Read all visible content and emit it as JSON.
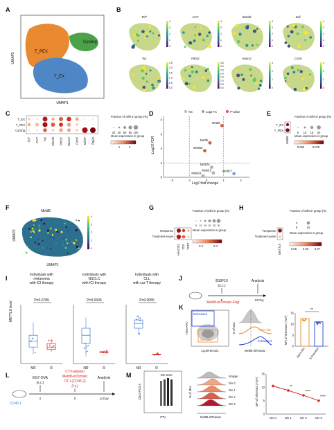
{
  "panels": {
    "A": {
      "letter": "A",
      "ylabel": "UMAP2",
      "xlabel": "UMAP1",
      "clusters": [
        "T_PEX",
        "T_EX",
        "Cycling"
      ],
      "colors": {
        "pex": "#e98a30",
        "ex": "#4f86c6",
        "cyc": "#4ba24a"
      }
    },
    "B": {
      "letter": "B",
      "genes": [
        "Tcf7",
        "Ccr7",
        "Slamf6",
        "Sell",
        "Tox",
        "Pdcd1",
        "Havcr2",
        "Cxcr6"
      ],
      "scales": [
        [
          "4",
          "3",
          "2",
          "1",
          "0"
        ],
        [
          "4",
          "3",
          "2",
          "1",
          "0"
        ],
        [
          "4",
          "3",
          "2",
          "1",
          "0"
        ],
        [
          "4",
          "3",
          "2",
          "1",
          "0"
        ],
        [
          "2.5",
          "2.0",
          "1.5",
          "1.0",
          "0.5",
          "0.0"
        ],
        [
          "3.5",
          "3.0",
          "2.5",
          "2.0",
          "1.5",
          "1.0",
          "0.5",
          "0.0"
        ],
        [
          "3",
          "2",
          "1",
          "0"
        ],
        [
          "3",
          "2",
          "1",
          "0"
        ]
      ]
    },
    "C": {
      "letter": "C",
      "rows": [
        "T_EX",
        "T_PEX",
        "Cycling"
      ],
      "cols": [
        "Tcf7",
        "Ccr7",
        "Tox",
        "Slamf6",
        "Pdcd1",
        "Havcr2",
        "Cxcr6",
        "Mki67",
        "Top2a"
      ],
      "size_title": "Fraction of cells in group (%)",
      "size_ticks": [
        "20",
        "40",
        "60",
        "80",
        "100"
      ],
      "color_title": "Mean expression in group",
      "color_ticks": [
        "1",
        "2"
      ]
    },
    "D": {
      "letter": "D",
      "legend": [
        "NS",
        "Log2 FC",
        "P-value"
      ],
      "ylabel": "-Log10 FDR",
      "xlabel": "Log2 fold change",
      "xticks": [
        "-2",
        "-1",
        "0",
        "1",
        "2"
      ],
      "yticks": [
        "0",
        "2",
        "4",
        "6",
        "8"
      ],
      "points": [
        {
          "label": "Mettl8",
          "x": 0.9,
          "y": 7.2,
          "c": "red"
        },
        {
          "label": "Mettl6",
          "x": 0.2,
          "y": 4.8,
          "c": "red"
        },
        {
          "label": "Mettl16",
          "x": -0.1,
          "y": 3.7,
          "c": "red"
        },
        {
          "label": "Mettl26",
          "x": 0.3,
          "y": 1.4,
          "c": "grey"
        },
        {
          "label": "Mettl15",
          "x": 0.4,
          "y": 0.6,
          "c": "grey"
        },
        {
          "label": "Mettl24",
          "x": -0.2,
          "y": 0.2,
          "c": "grey"
        },
        {
          "label": "Mettl27",
          "x": 1.6,
          "y": 0.5,
          "c": "blue"
        }
      ]
    },
    "E": {
      "letter": "E",
      "rows": [
        "T_EX",
        "T_PEX"
      ],
      "col": "Mettl8",
      "size_title": "Fraction of cells in group (%)",
      "size_ticks": [
        "5",
        "10",
        "15",
        "20"
      ],
      "color_title": "Mean expression in group",
      "color_ticks": [
        "0.050",
        "0.075"
      ]
    },
    "F": {
      "letter": "F",
      "title": "Mettl8",
      "ylabel": "UMAP2",
      "xlabel": "UMAP1",
      "scale": [
        "4",
        "3",
        "2",
        "1",
        "0"
      ]
    },
    "G": {
      "letter": "G",
      "rows": [
        "Response",
        "Treatment-naive"
      ],
      "cols": [
        "HAVCR2",
        "TOX",
        "TCF7"
      ],
      "size_title": "Fraction of cells in group (%)",
      "size_ticks": [
        "5",
        "10",
        "15",
        "20",
        "25",
        "30"
      ],
      "color_title": "Mean expression in group",
      "color_ticks": [
        "0.2",
        "0.4"
      ]
    },
    "H": {
      "letter": "H",
      "rows": [
        "Response",
        "Treatment-naive"
      ],
      "col": "METTL8",
      "size_title": "Fraction of cells in group (%)",
      "size_ticks": [
        "5",
        "10"
      ],
      "color_title": "Mean expression in group",
      "color_ticks": [
        "0.05",
        "0.06",
        "0.07"
      ]
    },
    "I": {
      "letter": "I",
      "ylabel": "METTL8 level",
      "groups": [
        "NR",
        "R"
      ],
      "plots": [
        {
          "title": "Individuals with melanoma with ICI therapy",
          "p": "P=0.0789"
        },
        {
          "title": "Individuals with NSCLC with ICI therapy",
          "p": "P=0.0335"
        },
        {
          "title": "Individuals with CLL with car-T therapy",
          "p": "P=0.0055"
        }
      ]
    },
    "J": {
      "letter": "J",
      "tumor": "B16F10",
      "route": "(s.c.)",
      "mouse": "Mettl8-tdTomato-Flag",
      "day0": "0",
      "day13": "13 Day",
      "analysis": "Analysis"
    },
    "K": {
      "letter": "K",
      "gate_y": "Tim3-APC",
      "gate_x": "Ly108-BV421",
      "gates": [
        "Exhausted",
        "Stem-like"
      ],
      "hist_y": "% of Max",
      "hist_x": "Mettl8-tdTomato",
      "hist_labels": [
        "Stem-like",
        "Exhausted"
      ],
      "bar_y": "MFI of tdTomato (×10³)",
      "bar_x": [
        "Stem-like",
        "Exhausted"
      ],
      "sig": "**",
      "values": [
        12.5,
        11.0
      ],
      "yticks": [
        "0",
        "5",
        "10",
        "15"
      ]
    },
    "L": {
      "letter": "L",
      "tumor": "EG7-OVA",
      "route": "(s.c.)",
      "cells": [
        "CTV-labeled",
        "Mettl8-tdTomato",
        "OT-I (CD45.2)",
        "(i.v.)"
      ],
      "days": [
        "0",
        "9",
        "12 Day"
      ],
      "analysis": "Analysis",
      "host": "CD45.1"
    },
    "M": {
      "letter": "M",
      "gate_y": "CD44-PC5.5",
      "gate_x": "CTV",
      "gate_label": "Div 3210",
      "hist_y": "% of Max",
      "hist_x": "Mettl8-tdTomato",
      "hist_labels": [
        "Isotype",
        "Div 0",
        "Div 1",
        "Div 2",
        "Div 3"
      ],
      "line_y": "MFI of tdTomato (×10³)",
      "line_x": [
        "Div 0",
        "Div 1",
        "Div 2",
        "Div 3"
      ],
      "values": [
        10.5,
        8.8,
        7.0,
        5.0
      ],
      "sig": [
        "**",
        "****",
        "****"
      ],
      "yticks": [
        "0",
        "5",
        "10",
        "15"
      ]
    }
  }
}
